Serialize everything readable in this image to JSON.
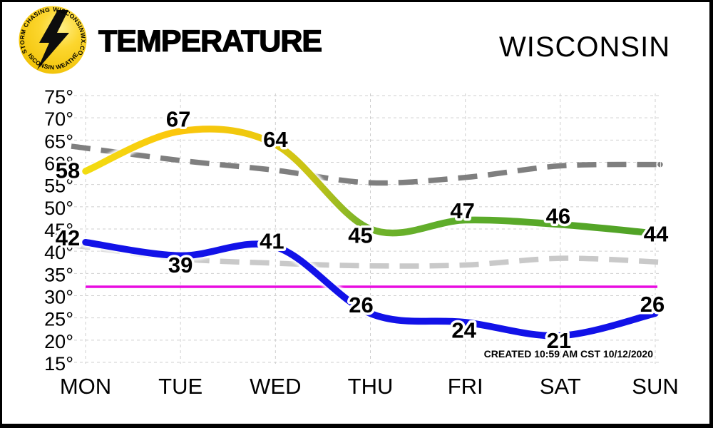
{
  "header": {
    "title": "TEMPERATURE",
    "region": "WISCONSIN",
    "logo": {
      "arc_top_left": "STORM CHASING",
      "arc_top_right": "WISCONSINWX.COM",
      "arc_bottom": "WISCONSIN WEATHER",
      "circle_color": "#f6c800",
      "bolt_color": "#0d0d0d"
    }
  },
  "chart_data": {
    "type": "line",
    "title": "TEMPERATURE",
    "region": "WISCONSIN",
    "categories": [
      "MON",
      "TUE",
      "WED",
      "THU",
      "FRI",
      "SAT",
      "SUN"
    ],
    "series": [
      {
        "name": "forecast-high",
        "values": [
          58,
          67,
          64,
          45,
          47,
          46,
          44
        ],
        "style": "solid",
        "labels_shown": true,
        "gradient": [
          {
            "offset": 0.0,
            "color": "#f2dc11"
          },
          {
            "offset": 0.16,
            "color": "#fcc60c"
          },
          {
            "offset": 0.3,
            "color": "#edc90e"
          },
          {
            "offset": 0.4,
            "color": "#c3c318"
          },
          {
            "offset": 0.49,
            "color": "#74b32a"
          },
          {
            "offset": 0.62,
            "color": "#5ead2b"
          },
          {
            "offset": 1.0,
            "color": "#50a226"
          }
        ]
      },
      {
        "name": "forecast-low",
        "values": [
          42,
          39,
          41,
          26,
          24,
          21,
          26
        ],
        "style": "solid",
        "labels_shown": true,
        "color": "#1212e8"
      },
      {
        "name": "normal-high",
        "values": [
          63.2,
          60.4,
          58.2,
          55.4,
          56.6,
          59.2,
          59.5
        ],
        "edge_values": [
          63.6,
          59.5
        ],
        "style": "dashed",
        "labels_shown": false,
        "color": "#7f7f7f"
      },
      {
        "name": "normal-low",
        "values": [
          41.0,
          38.3,
          37.3,
          36.7,
          36.9,
          38.4,
          37.6
        ],
        "edge_values": [
          41.4,
          37.3
        ],
        "style": "dashed",
        "labels_shown": false,
        "color": "#c9c9c9"
      }
    ],
    "reference_line": {
      "value": 32,
      "color": "#e80ce0"
    },
    "y_axis": {
      "min": 15,
      "max": 75,
      "step": 5,
      "suffix": "°",
      "tick_labels": [
        "75°",
        "70°",
        "65°",
        "60°",
        "55°",
        "50°",
        "45°",
        "40°",
        "35°",
        "30°",
        "25°",
        "20°",
        "15°"
      ]
    },
    "grid": true,
    "grid_color": "#cfcfcf",
    "created_label": "CREATED 10:59 AM CST 10/12/2020"
  }
}
